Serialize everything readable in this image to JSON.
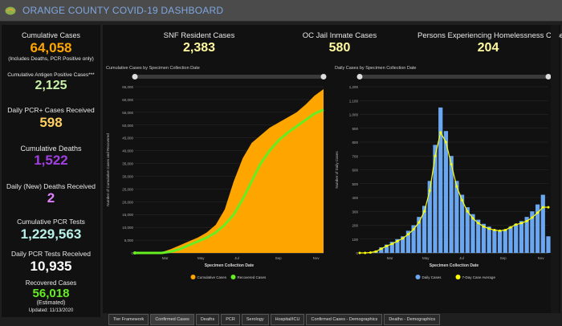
{
  "header": {
    "title": "ORANGE COUNTY COVID-19 DASHBOARD"
  },
  "left_panel": {
    "cumulative_cases_label": "Cumulative Cases",
    "cumulative_cases_value": "64,058",
    "cumulative_cases_note": "(Includes Deaths, PCR Positive only)",
    "antigen_label": "Cumulative Antigen Positive Cases***",
    "antigen_value": "2,125",
    "daily_pcr_label": "Daily PCR+ Cases Received",
    "daily_pcr_value": "598",
    "deaths_label": "Cumulative Deaths",
    "deaths_value": "1,522",
    "daily_deaths_label": "Daily (New) Deaths Received",
    "daily_deaths_value": "2",
    "pcr_tests_label": "Cumulative PCR Tests",
    "pcr_tests_value": "1,229,563",
    "daily_tests_label": "Daily PCR Tests Received",
    "daily_tests_value": "10,935",
    "recovered_label": "Recovered Cases",
    "recovered_value": "56,018",
    "recovered_note": "(Estimated)",
    "updated": "Updated: 11/13/2020"
  },
  "top_kpis": {
    "snf_label": "SNF Resident Cases",
    "snf_value": "2,383",
    "jail_label": "OC Jail Inmate Cases",
    "jail_value": "580",
    "homeless_label": "Persons Experiencing Homelessness Cases",
    "homeless_value": "204"
  },
  "colors": {
    "cases_orange": "#ffa500",
    "recovered_green": "#66ee22",
    "daily_blue": "#6aa7f0",
    "avg_yellow": "#ffff00"
  },
  "tabs": [
    "Tier Framework",
    "Confirmed Cases",
    "Deaths",
    "PCR",
    "Serology",
    "Hospital/ICU",
    "Confirmed Cases - Demographics",
    "Deaths - Demographics"
  ],
  "active_tab": 1,
  "chart_data": [
    {
      "type": "area",
      "title": "Cumulative Cases by Specimen Collection Date",
      "xlabel": "Specimen Collection Date",
      "ylabel": "Number of Cumulative Cases and Recovered",
      "ylim": [
        0,
        65000
      ],
      "yticks": [
        0,
        5000,
        10000,
        15000,
        20000,
        25000,
        30000,
        35000,
        40000,
        45000,
        50000,
        55000,
        60000,
        65000
      ],
      "yticklabels": [
        "0",
        "5,000",
        "10,000",
        "15,000",
        "20,000",
        "25,000",
        "30,000",
        "35,000",
        "40,000",
        "45,000",
        "50,000",
        "55,000",
        "60,000",
        "65,000"
      ],
      "xticklabels": [
        "Mar",
        "May",
        "Jul",
        "Sep",
        "Nov"
      ],
      "series": [
        {
          "name": "Cumulative Cases",
          "values": [
            0,
            0,
            50,
            300,
            1500,
            3000,
            4500,
            6000,
            8000,
            11000,
            17000,
            28000,
            37000,
            43000,
            46000,
            49000,
            51000,
            53000,
            55000,
            58000,
            61500,
            64058
          ]
        },
        {
          "name": "Recovered Cases",
          "values": [
            0,
            0,
            0,
            0,
            500,
            1500,
            3000,
            4500,
            6000,
            8000,
            11000,
            15000,
            21000,
            28000,
            35000,
            40000,
            44000,
            47000,
            49500,
            52000,
            54500,
            56018
          ]
        }
      ],
      "legend": [
        "Cumulative Cases",
        "Recovered Cases"
      ],
      "legend_position": "bottom"
    },
    {
      "type": "bar",
      "title": "Daily Cases by Specimen Collection Date",
      "xlabel": "Specimen Collection Date",
      "ylabel": "Number of Daily Cases",
      "ylim": [
        0,
        1200
      ],
      "yticks": [
        0,
        100,
        200,
        300,
        400,
        500,
        600,
        700,
        800,
        900,
        1000,
        1100,
        1200
      ],
      "yticklabels": [
        "0",
        "100",
        "200",
        "300",
        "400",
        "500",
        "600",
        "700",
        "800",
        "900",
        "1,000",
        "1,100",
        "1,200"
      ],
      "xticklabels": [
        "Mar",
        "May",
        "Jul",
        "Sep",
        "Nov"
      ],
      "series": [
        {
          "name": "Daily Cases",
          "values": [
            0,
            0,
            5,
            15,
            40,
            60,
            80,
            100,
            120,
            160,
            200,
            260,
            340,
            520,
            780,
            1050,
            880,
            700,
            520,
            420,
            330,
            280,
            240,
            210,
            190,
            170,
            160,
            170,
            190,
            210,
            230,
            260,
            300,
            350,
            420,
            120
          ]
        },
        {
          "name": "7-Day Case Average",
          "values": [
            0,
            0,
            3,
            10,
            30,
            50,
            65,
            85,
            105,
            135,
            170,
            220,
            300,
            450,
            700,
            870,
            800,
            640,
            480,
            380,
            300,
            250,
            215,
            190,
            175,
            165,
            160,
            165,
            185,
            205,
            215,
            230,
            255,
            290,
            330,
            330
          ]
        }
      ],
      "legend": [
        "Daily Cases",
        "7-Day Case Average"
      ],
      "legend_position": "bottom"
    }
  ]
}
